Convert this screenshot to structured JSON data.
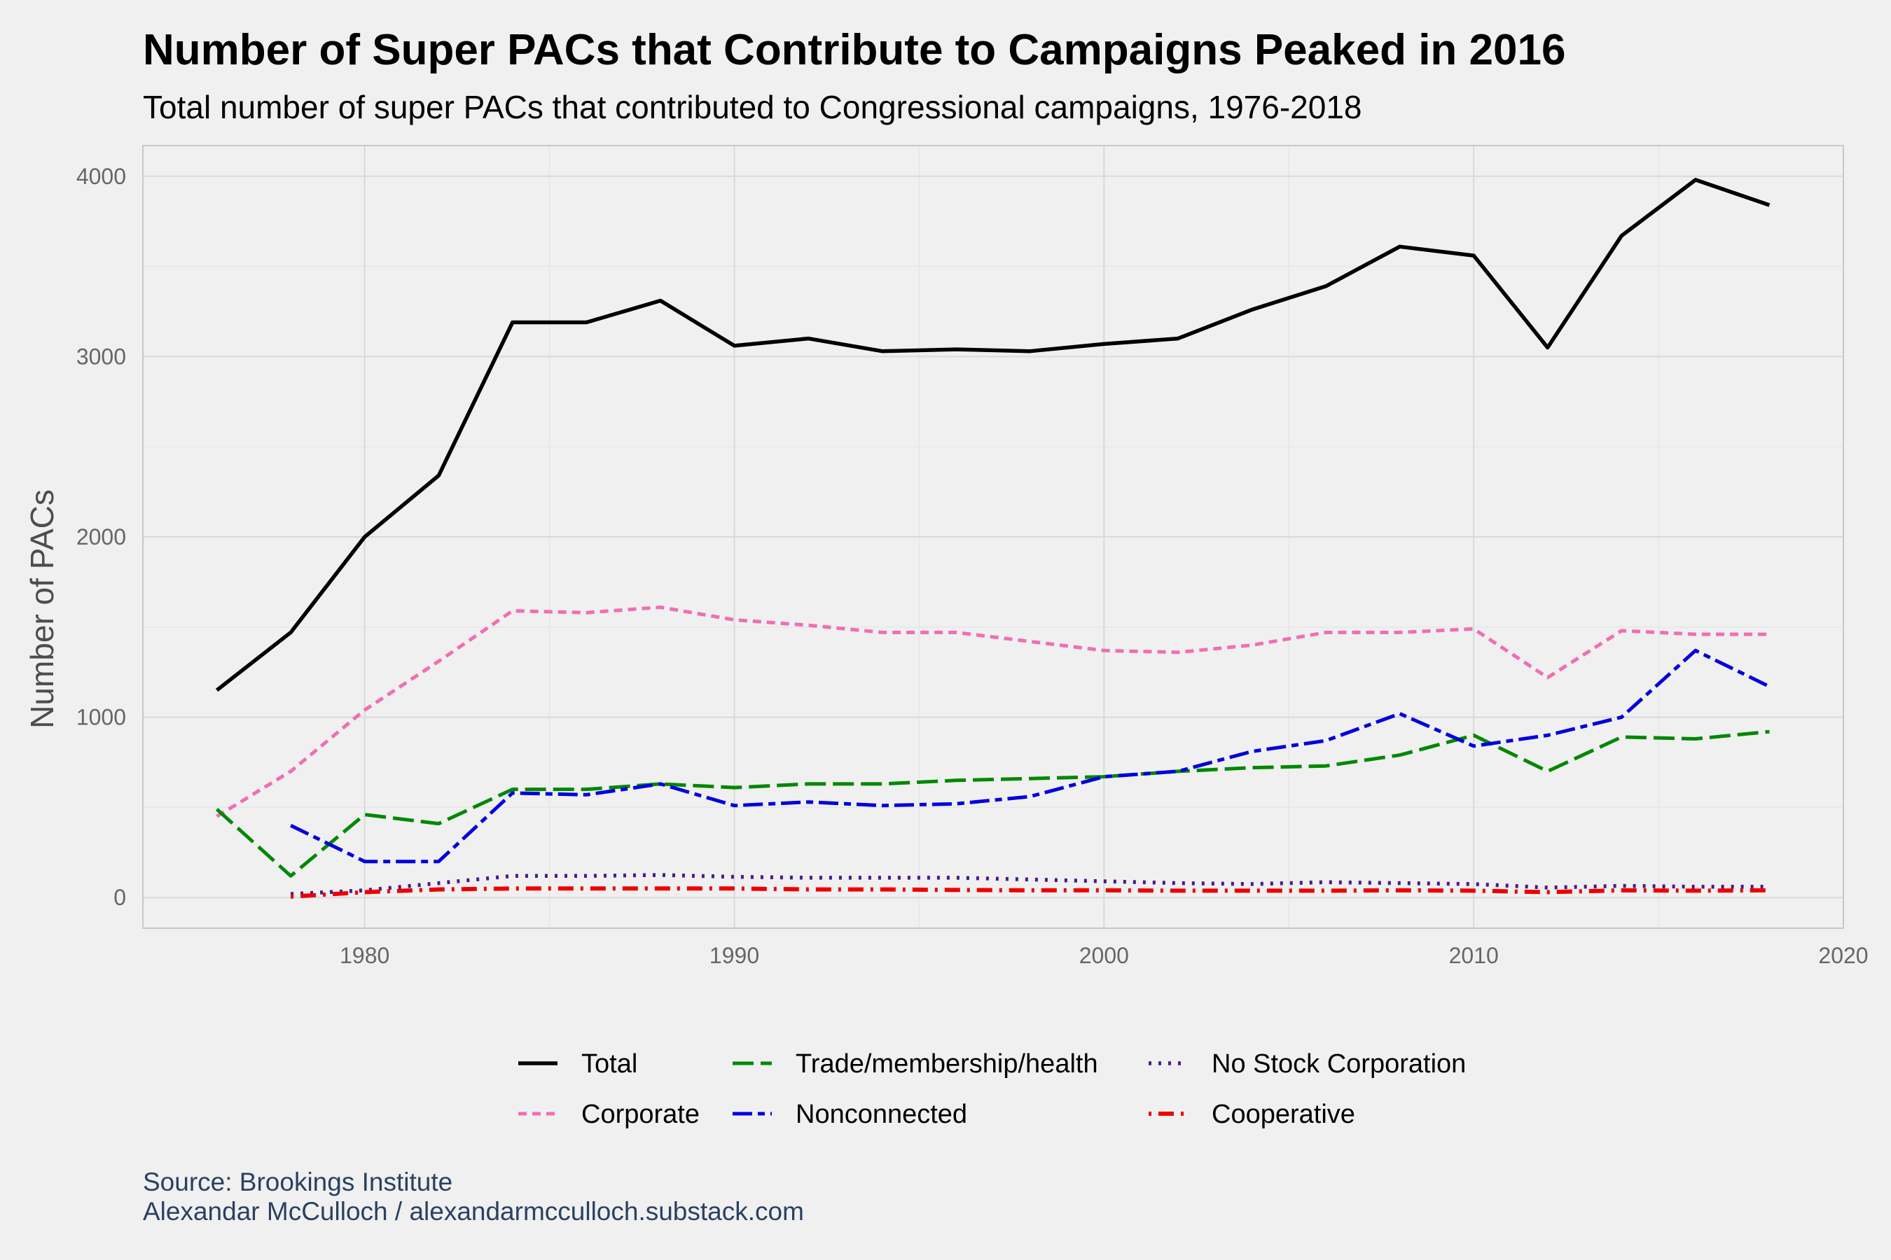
{
  "title": "Number of Super PACs that Contribute to Campaigns Peaked in 2016",
  "subtitle": "Total number of super PACs that contributed to Congressional campaigns, 1976-2018",
  "caption_source": "Source: Brookings Institute",
  "caption_author": "Alexandar McCulloch / alexandarmcculloch.substack.com",
  "chart_data": {
    "type": "line",
    "xlabel": "",
    "ylabel": "Number of PACs",
    "xlim": [
      1974,
      2020
    ],
    "ylim": [
      -170,
      4170
    ],
    "x_ticks": [
      1980,
      1990,
      2000,
      2010,
      2020
    ],
    "y_ticks": [
      0,
      1000,
      2000,
      3000,
      4000
    ],
    "grid": true,
    "legend_position": "bottom",
    "series": [
      {
        "name": "Total",
        "color": "#000000",
        "dash": "solid",
        "x": [
          1976,
          1978,
          1980,
          1982,
          1984,
          1986,
          1988,
          1990,
          1992,
          1994,
          1996,
          1998,
          2000,
          2002,
          2004,
          2006,
          2008,
          2010,
          2012,
          2014,
          2016,
          2018
        ],
        "values": [
          1150,
          1470,
          2000,
          2340,
          3190,
          3190,
          3310,
          3060,
          3100,
          3030,
          3040,
          3030,
          3070,
          3100,
          3260,
          3390,
          3610,
          3560,
          3050,
          3670,
          3980,
          3840
        ]
      },
      {
        "name": "Corporate",
        "color": "#f06eb4",
        "dash": "short",
        "x": [
          1976,
          1978,
          1980,
          1982,
          1984,
          1986,
          1988,
          1990,
          1992,
          1994,
          1996,
          1998,
          2000,
          2002,
          2004,
          2006,
          2008,
          2010,
          2012,
          2014,
          2016,
          2018
        ],
        "values": [
          450,
          700,
          1040,
          1310,
          1590,
          1580,
          1610,
          1540,
          1510,
          1470,
          1470,
          1420,
          1370,
          1360,
          1400,
          1470,
          1470,
          1490,
          1220,
          1480,
          1460,
          1460
        ]
      },
      {
        "name": "Trade/membership/health",
        "color": "#008800",
        "dash": "long",
        "x": [
          1976,
          1978,
          1980,
          1982,
          1984,
          1986,
          1988,
          1990,
          1992,
          1994,
          1996,
          1998,
          2000,
          2002,
          2004,
          2006,
          2008,
          2010,
          2012,
          2014,
          2016,
          2018
        ],
        "values": [
          490,
          120,
          460,
          410,
          600,
          600,
          630,
          610,
          630,
          630,
          650,
          660,
          670,
          700,
          720,
          730,
          790,
          900,
          700,
          890,
          880,
          920
        ]
      },
      {
        "name": "Nonconnected",
        "color": "#0000dd",
        "dash": "twodash",
        "x": [
          1978,
          1980,
          1982,
          1984,
          1986,
          1988,
          1990,
          1992,
          1994,
          1996,
          1998,
          2000,
          2002,
          2004,
          2006,
          2008,
          2010,
          2012,
          2014,
          2016,
          2018
        ],
        "values": [
          400,
          200,
          200,
          580,
          570,
          630,
          510,
          530,
          510,
          520,
          560,
          670,
          700,
          810,
          870,
          1020,
          840,
          900,
          1000,
          1370,
          1170
        ]
      },
      {
        "name": "No Stock Corporation",
        "color": "#4b1a8a",
        "dash": "dotted",
        "x": [
          1978,
          1980,
          1982,
          1984,
          1986,
          1988,
          1990,
          1992,
          1994,
          1996,
          1998,
          2000,
          2002,
          2004,
          2006,
          2008,
          2010,
          2012,
          2014,
          2016,
          2018
        ],
        "values": [
          20,
          40,
          80,
          120,
          120,
          125,
          115,
          110,
          110,
          110,
          100,
          90,
          80,
          75,
          85,
          80,
          75,
          55,
          65,
          60,
          60
        ]
      },
      {
        "name": "Cooperative",
        "color": "#ee0000",
        "dash": "dotdash",
        "x": [
          1978,
          1980,
          1982,
          1984,
          1986,
          1988,
          1990,
          1992,
          1994,
          1996,
          1998,
          2000,
          2002,
          2004,
          2006,
          2008,
          2010,
          2012,
          2014,
          2016,
          2018
        ],
        "values": [
          5,
          30,
          45,
          50,
          50,
          50,
          50,
          45,
          45,
          42,
          40,
          40,
          38,
          38,
          38,
          40,
          38,
          30,
          40,
          38,
          40
        ]
      }
    ]
  }
}
